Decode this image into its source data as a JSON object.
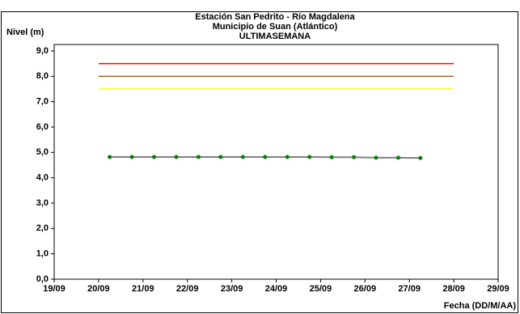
{
  "chart_data": {
    "type": "line",
    "title_lines": [
      "Estación San Pedrito - Río Magdalena",
      "Municipio de Suan (Atlántico)",
      "ULTIMASEMANA"
    ],
    "y_label": "Nivel (m)",
    "x_label": "Fecha (DD/M/AA)",
    "xlim": [
      19,
      29
    ],
    "xticks": [
      {
        "value": 19,
        "label": "19/09"
      },
      {
        "value": 20,
        "label": "20/09"
      },
      {
        "value": 21,
        "label": "21/09"
      },
      {
        "value": 22,
        "label": "22/09"
      },
      {
        "value": 23,
        "label": "23/09"
      },
      {
        "value": 24,
        "label": "24/09"
      },
      {
        "value": 25,
        "label": "25/09"
      },
      {
        "value": 26,
        "label": "26/09"
      },
      {
        "value": 27,
        "label": "27/09"
      },
      {
        "value": 28,
        "label": "28/09"
      },
      {
        "value": 29,
        "label": "29/09"
      }
    ],
    "ylim": [
      0,
      9
    ],
    "yticks": [
      {
        "value": 0,
        "label": "0,0"
      },
      {
        "value": 1,
        "label": "1,0"
      },
      {
        "value": 2,
        "label": "2,0"
      },
      {
        "value": 3,
        "label": "3,0"
      },
      {
        "value": 4,
        "label": "4,0"
      },
      {
        "value": 5,
        "label": "5,0"
      },
      {
        "value": 6,
        "label": "6,0"
      },
      {
        "value": 7,
        "label": "7,0"
      },
      {
        "value": 8,
        "label": "8,0"
      },
      {
        "value": 9,
        "label": "9,0"
      }
    ],
    "thresholds": [
      {
        "color": "#ff0000",
        "x": [
          20,
          28
        ],
        "values": [
          8.5,
          8.5
        ]
      },
      {
        "color": "#996633",
        "x": [
          20,
          28
        ],
        "values": [
          8.0,
          8.0
        ]
      },
      {
        "color": "#ffff00",
        "x": [
          20,
          28
        ],
        "values": [
          7.5,
          7.5
        ]
      }
    ],
    "series": [
      {
        "color": "#808080",
        "marker_color": "#008000",
        "x": [
          20.25,
          20.75,
          21.25,
          21.75,
          22.25,
          22.75,
          23.25,
          23.75,
          24.25,
          24.75,
          25.25,
          25.75,
          26.25,
          26.75,
          27.25
        ],
        "values": [
          4.82,
          4.82,
          4.82,
          4.82,
          4.82,
          4.82,
          4.82,
          4.82,
          4.82,
          4.82,
          4.81,
          4.81,
          4.79,
          4.79,
          4.78
        ]
      }
    ]
  }
}
